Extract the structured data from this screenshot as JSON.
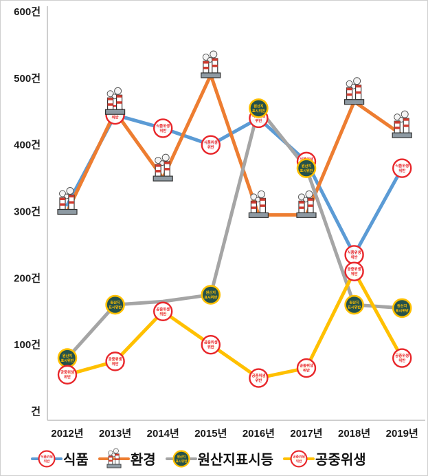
{
  "chart_data": {
    "type": "line",
    "title": "",
    "xlabel": "",
    "ylabel": "",
    "ylim": [
      0,
      600
    ],
    "grid": false,
    "legend_position": "bottom",
    "unit": "건",
    "categories": [
      "2012년",
      "2013년",
      "2014년",
      "2015년",
      "2016년",
      "2017년",
      "2018년",
      "2019년"
    ],
    "yticks": [
      {
        "value": 0,
        "label": "건"
      },
      {
        "value": 100,
        "label": "100건"
      },
      {
        "value": 200,
        "label": "200건"
      },
      {
        "value": 300,
        "label": "300건"
      },
      {
        "value": 400,
        "label": "400건"
      },
      {
        "value": 500,
        "label": "500건"
      },
      {
        "value": 600,
        "label": "600건"
      }
    ],
    "series": [
      {
        "name": "식품",
        "slug": "food",
        "color": "#5B9BD5",
        "marker": "stamp",
        "marker_color": "#e8262a",
        "marker_text": [
          "식품위생",
          "위반"
        ],
        "marker_hidden": [
          0
        ],
        "values": [
          310,
          445,
          425,
          400,
          440,
          375,
          235,
          365
        ]
      },
      {
        "name": "환경",
        "slug": "environment",
        "color": "#ED7D31",
        "marker": "factory",
        "marker_hidden": [],
        "values": [
          300,
          450,
          350,
          505,
          295,
          295,
          465,
          415
        ]
      },
      {
        "name": "원산지표시등",
        "slug": "origin-labeling",
        "color": "#A5A5A5",
        "marker": "badge",
        "marker_color": "#24514b",
        "marker_ring": "#FFC000",
        "marker_text": [
          "원산지",
          "표시위반"
        ],
        "marker_hidden": [
          2
        ],
        "values": [
          80,
          160,
          165,
          175,
          455,
          365,
          160,
          155
        ]
      },
      {
        "name": "공중위생",
        "slug": "public-hygiene",
        "color": "#FFC000",
        "marker": "stamp",
        "marker_color": "#e8262a",
        "marker_text": [
          "공중위생",
          "위반"
        ],
        "marker_hidden": [],
        "values": [
          55,
          75,
          150,
          100,
          50,
          65,
          210,
          80
        ]
      }
    ],
    "axis_color": "#BFBFBF"
  }
}
